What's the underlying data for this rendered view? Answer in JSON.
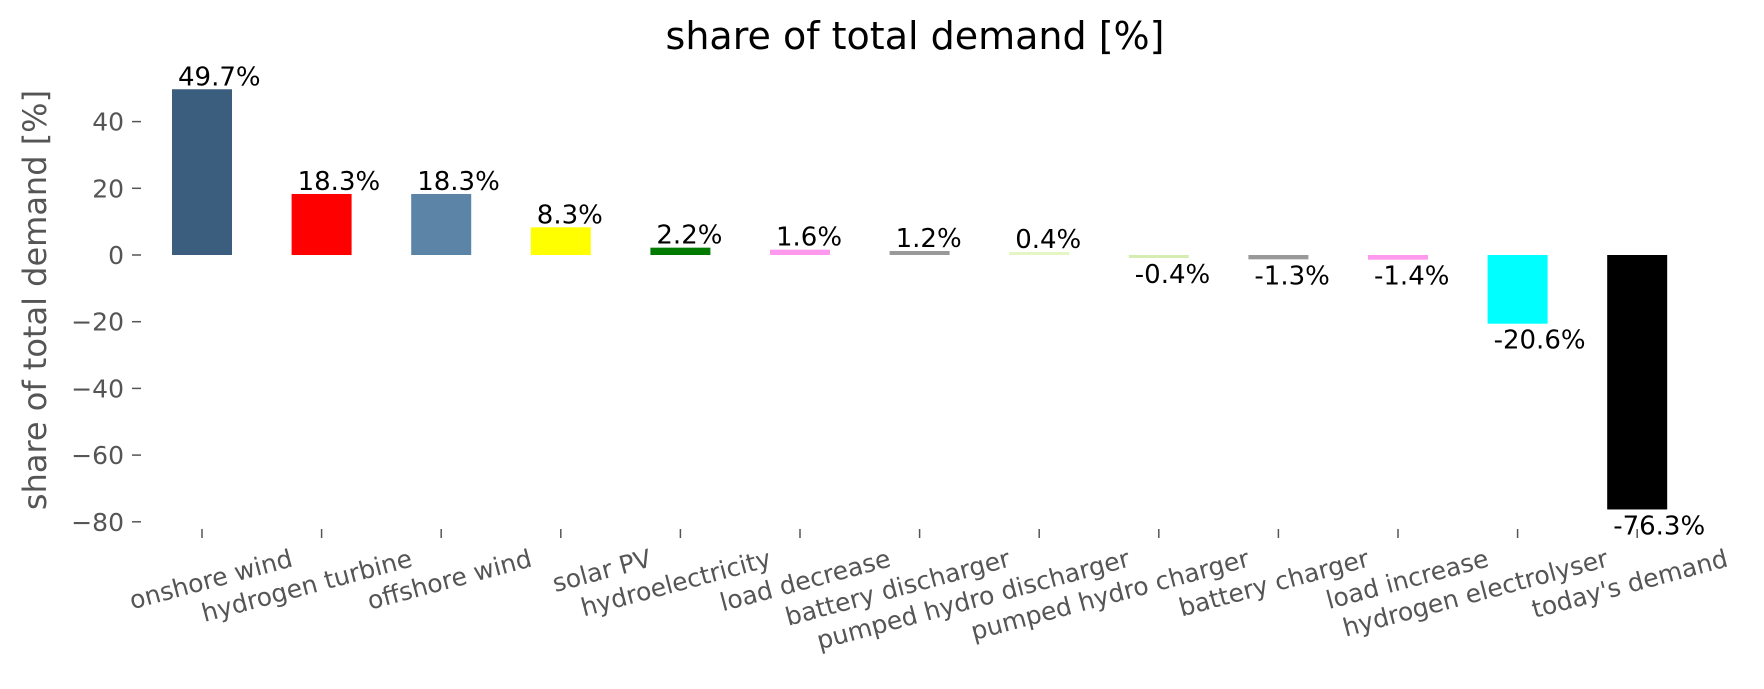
{
  "chart_data": {
    "type": "bar",
    "title": "share of total demand [%]",
    "xlabel": "",
    "ylabel": "share of total demand [%]",
    "ylim": [
      -84,
      52
    ],
    "yticks": [
      40,
      20,
      0,
      -20,
      -40,
      -60,
      -80
    ],
    "ytick_labels": [
      "40",
      "20",
      "0",
      "−20",
      "−40",
      "−60",
      "−80"
    ],
    "grid": false,
    "legend": "none",
    "categories": [
      "onshore wind",
      "hydrogen turbine",
      "offshore wind",
      "solar PV",
      "hydroelectricity",
      "load decrease",
      "battery discharger",
      "pumped hydro discharger",
      "pumped hydro charger",
      "battery charger",
      "load increase",
      "hydrogen electrolyser",
      "today's demand"
    ],
    "values": [
      49.7,
      18.3,
      18.3,
      8.3,
      2.2,
      1.6,
      1.2,
      0.4,
      -0.4,
      -1.3,
      -1.4,
      -20.6,
      -76.3
    ],
    "data_labels": [
      "49.7%",
      "18.3%",
      "18.3%",
      "8.3%",
      "2.2%",
      "1.6%",
      "1.2%",
      "0.4%",
      "-0.4%",
      "-1.3%",
      "-1.4%",
      "-20.6%",
      "-76.3%"
    ],
    "colors": [
      "#3b5d7e",
      "#ff0000",
      "#5b84a6",
      "#ffff00",
      "#007a00",
      "#ff99ee",
      "#999999",
      "#e5f5c5",
      "#d5edb0",
      "#999999",
      "#ff99ee",
      "#00ffff",
      "#000000"
    ]
  }
}
